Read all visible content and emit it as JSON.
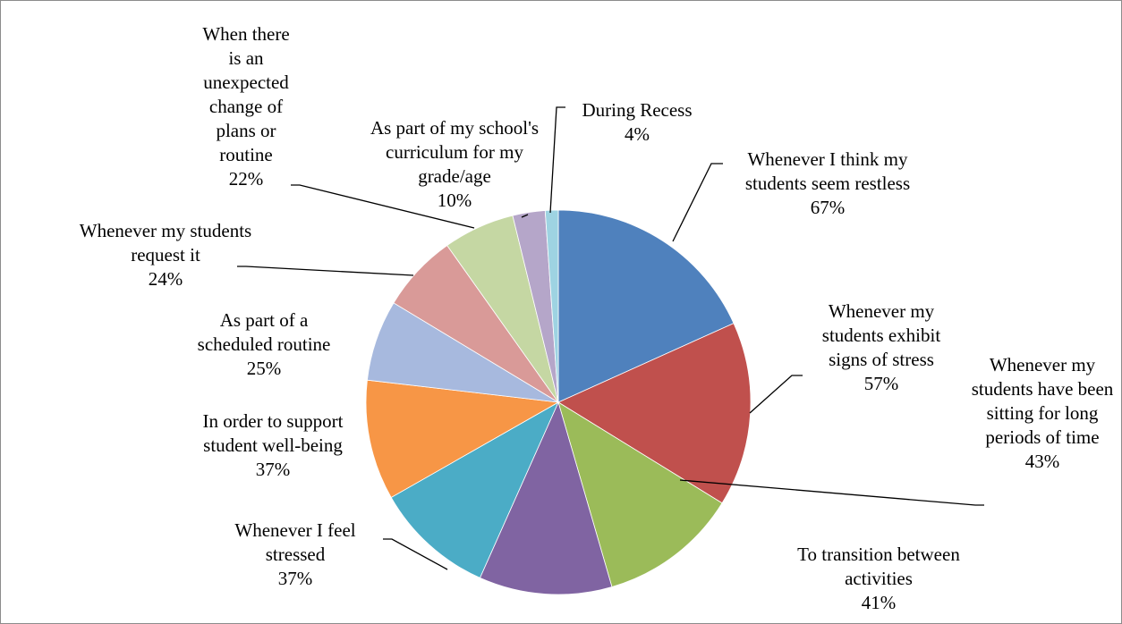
{
  "chart_data": {
    "type": "pie",
    "categories": [
      "Whenever I think my students seem restless",
      "Whenever my students exhibit signs of stress",
      "Whenever my students have been sitting for long periods of time",
      "To transition between activities",
      "Whenever I feel stressed",
      "In order to support student well-being",
      "As part of a scheduled routine",
      "Whenever my students request it",
      "When there is an unexpected change of plans or routine",
      "As part of my school's curriculum for my grade/age",
      "During Recess"
    ],
    "values": [
      67,
      57,
      43,
      41,
      37,
      37,
      25,
      24,
      22,
      10,
      4
    ],
    "value_labels": [
      "67%",
      "57%",
      "43%",
      "41%",
      "37%",
      "37%",
      "25%",
      "24%",
      "22%",
      "10%",
      "4%"
    ],
    "colors": [
      "#4f81bd",
      "#c0504d",
      "#9bbb59",
      "#8064a2",
      "#4bacc6",
      "#f79646",
      "#a7b9de",
      "#d99a98",
      "#c5d7a3",
      "#b5a6c9",
      "#9ed3e2"
    ]
  }
}
